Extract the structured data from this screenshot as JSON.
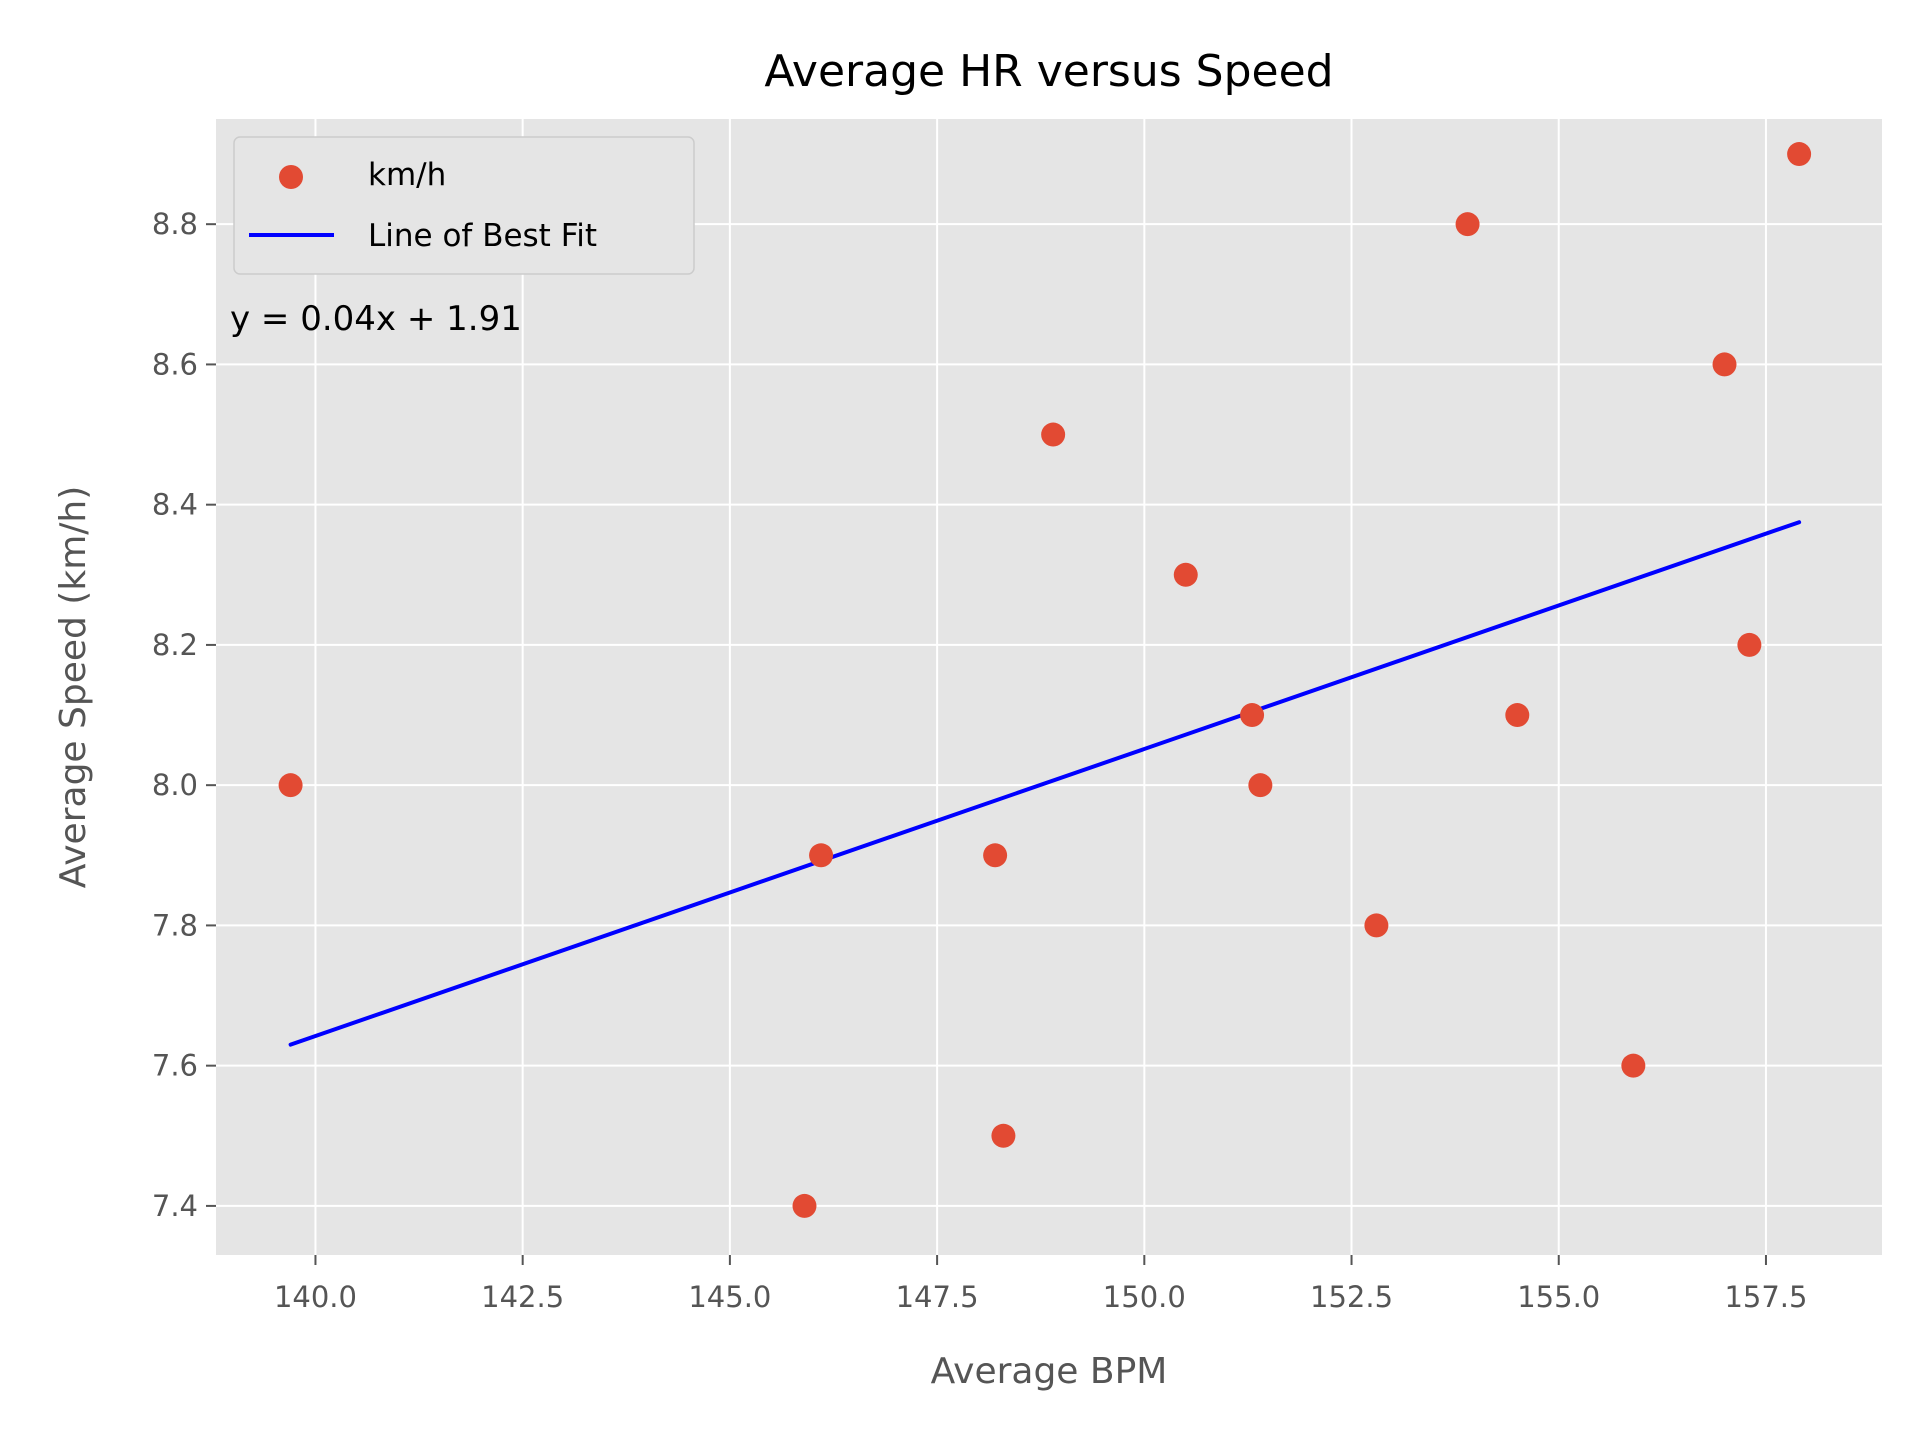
{
  "chart_data": {
    "type": "scatter",
    "title": "Average HR versus Speed",
    "xlabel": "Average BPM",
    "ylabel": "Average Speed (km/h)",
    "xlim": [
      138.8,
      158.9
    ],
    "ylim": [
      7.33,
      8.95
    ],
    "xticks": [
      140.0,
      142.5,
      145.0,
      147.5,
      150.0,
      152.5,
      155.0,
      157.5
    ],
    "xtick_labels": [
      "140.0",
      "142.5",
      "145.0",
      "147.5",
      "150.0",
      "152.5",
      "155.0",
      "157.5"
    ],
    "yticks": [
      7.4,
      7.6,
      7.8,
      8.0,
      8.2,
      8.4,
      8.6,
      8.8
    ],
    "ytick_labels": [
      "7.4",
      "7.6",
      "7.8",
      "8.0",
      "8.2",
      "8.4",
      "8.6",
      "8.8"
    ],
    "grid": true,
    "legend_position": "top-left",
    "series": [
      {
        "name": "km/h",
        "kind": "scatter",
        "color": "#E24A33",
        "points": [
          {
            "x": 139.7,
            "y": 8.0
          },
          {
            "x": 145.9,
            "y": 7.4
          },
          {
            "x": 146.1,
            "y": 7.9
          },
          {
            "x": 148.2,
            "y": 7.9
          },
          {
            "x": 148.3,
            "y": 7.5
          },
          {
            "x": 148.9,
            "y": 8.5
          },
          {
            "x": 150.5,
            "y": 8.3
          },
          {
            "x": 151.3,
            "y": 8.1
          },
          {
            "x": 151.4,
            "y": 8.0
          },
          {
            "x": 152.8,
            "y": 7.8
          },
          {
            "x": 153.9,
            "y": 8.8
          },
          {
            "x": 154.5,
            "y": 8.1
          },
          {
            "x": 155.9,
            "y": 7.6
          },
          {
            "x": 157.0,
            "y": 8.6
          },
          {
            "x": 157.3,
            "y": 8.2
          },
          {
            "x": 157.9,
            "y": 8.9
          }
        ]
      },
      {
        "name": "Line of Best Fit",
        "kind": "line",
        "color": "#0000FF",
        "points": [
          {
            "x": 139.7,
            "y": 7.63
          },
          {
            "x": 157.9,
            "y": 8.375
          }
        ]
      }
    ],
    "annotations": [
      "y = 0.04x + 1.91"
    ],
    "colors": {
      "background": "#E5E5E5",
      "grid": "#FFFFFF",
      "scatter": "#E24A33",
      "line": "#0000FF"
    }
  }
}
